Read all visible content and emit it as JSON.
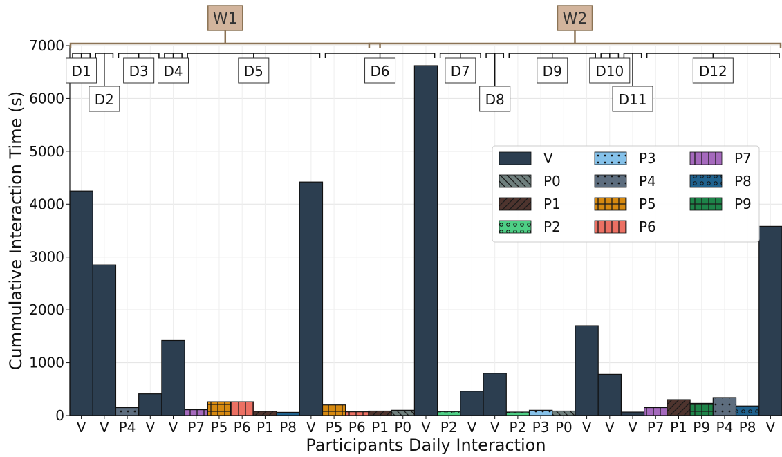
{
  "chart_data": {
    "type": "bar",
    "xlabel": "Participants Daily Interaction",
    "ylabel": "Cummulative Interaction Time (s)",
    "ylim": [
      0,
      7000
    ],
    "yticks": [
      0,
      1000,
      2000,
      3000,
      4000,
      5000,
      6000,
      7000
    ],
    "grid": true,
    "legend_position": "center-right",
    "categories": [
      "V",
      "V",
      "P4",
      "V",
      "V",
      "P7",
      "P5",
      "P6",
      "P1",
      "P8",
      "V",
      "P5",
      "P6",
      "P1",
      "P0",
      "V",
      "P2",
      "V",
      "V",
      "P2",
      "P3",
      "P0",
      "V",
      "V",
      "V",
      "P7",
      "P1",
      "P9",
      "P4",
      "P8",
      "V"
    ],
    "values": [
      4250,
      2850,
      150,
      410,
      1420,
      110,
      260,
      260,
      80,
      60,
      4420,
      200,
      70,
      85,
      100,
      6620,
      75,
      460,
      800,
      65,
      100,
      85,
      1700,
      780,
      65,
      150,
      300,
      230,
      340,
      180,
      3580
    ],
    "legend": [
      {
        "name": "V",
        "color": "#2c3e50",
        "pattern": "none"
      },
      {
        "name": "P0",
        "color": "#6f7f7d",
        "pattern": "backslash"
      },
      {
        "name": "P1",
        "color": "#4e342e",
        "pattern": "slash"
      },
      {
        "name": "P2",
        "color": "#4ecf85",
        "pattern": "circles"
      },
      {
        "name": "P3",
        "color": "#85c1e9",
        "pattern": "dots"
      },
      {
        "name": "P4",
        "color": "#5d6d7e",
        "pattern": "dots"
      },
      {
        "name": "P5",
        "color": "#d68910",
        "pattern": "grid"
      },
      {
        "name": "P6",
        "color": "#ec7063",
        "pattern": "vlines"
      },
      {
        "name": "P7",
        "color": "#a569bd",
        "pattern": "vlines"
      },
      {
        "name": "P8",
        "color": "#1f618d",
        "pattern": "circles"
      },
      {
        "name": "P9",
        "color": "#1e8449",
        "pattern": "grid"
      }
    ],
    "weeks": [
      {
        "label": "W1",
        "start": 0,
        "end": 13
      },
      {
        "label": "W2",
        "start": 13,
        "end": 30
      }
    ],
    "days": [
      {
        "label": "D1",
        "start": 0,
        "end": 0,
        "low": false
      },
      {
        "label": "D2",
        "start": 1,
        "end": 1,
        "low": true
      },
      {
        "label": "D3",
        "start": 2,
        "end": 3,
        "low": false
      },
      {
        "label": "D4",
        "start": 4,
        "end": 4,
        "low": false
      },
      {
        "label": "D5",
        "start": 5,
        "end": 10,
        "low": false
      },
      {
        "label": "D6",
        "start": 11,
        "end": 15,
        "low": false
      },
      {
        "label": "D7",
        "start": 16,
        "end": 17,
        "low": false
      },
      {
        "label": "D8",
        "start": 18,
        "end": 18,
        "low": true
      },
      {
        "label": "D9",
        "start": 19,
        "end": 22,
        "low": false
      },
      {
        "label": "D10",
        "start": 23,
        "end": 23,
        "low": false
      },
      {
        "label": "D11",
        "start": 24,
        "end": 24,
        "low": true
      },
      {
        "label": "D12",
        "start": 25,
        "end": 30,
        "low": false
      }
    ],
    "week_color": "#d2b49c",
    "week_border": "#8b7355"
  }
}
